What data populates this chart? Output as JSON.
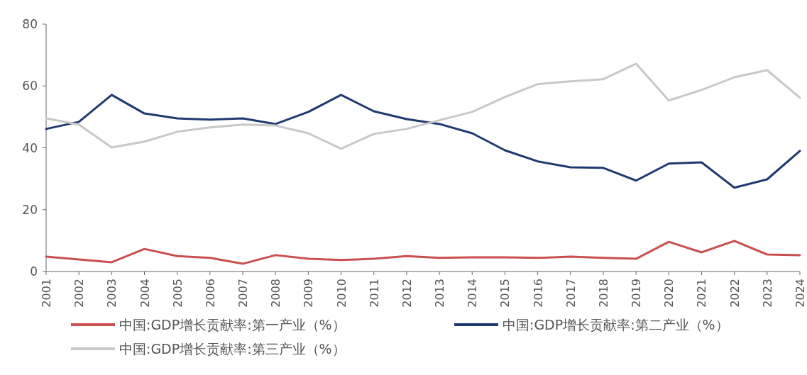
{
  "chart_data": {
    "type": "line",
    "categories": [
      "2001",
      "2002",
      "2003",
      "2004",
      "2005",
      "2006",
      "2007",
      "2008",
      "2009",
      "2010",
      "2011",
      "2012",
      "2013",
      "2014",
      "2015",
      "2016",
      "2017",
      "2018",
      "2019",
      "2020",
      "2021",
      "2022",
      "2023",
      "2024"
    ],
    "ylim": [
      0,
      80
    ],
    "yticks": [
      0,
      20,
      40,
      60,
      80
    ],
    "legend": "bottom",
    "line_style": "solid",
    "marker": "none",
    "series": [
      {
        "name": "中国:GDP增长贡献率:第一产业（%）",
        "color": "#c9504f",
        "values": [
          4.8,
          3.9,
          3.0,
          7.3,
          5.0,
          4.4,
          2.5,
          5.3,
          4.1,
          3.7,
          4.1,
          5.0,
          4.4,
          4.6,
          4.6,
          4.4,
          4.8,
          4.4,
          4.1,
          9.6,
          6.2,
          9.9,
          5.5,
          5.3
        ]
      },
      {
        "name": "中国:GDP增长贡献率:第二产业（%）",
        "color": "#1f3a70",
        "values": [
          46.1,
          48.4,
          57.1,
          51.1,
          49.5,
          49.1,
          49.5,
          47.7,
          51.6,
          57.1,
          51.8,
          49.3,
          47.7,
          44.7,
          39.2,
          35.6,
          33.7,
          33.5,
          29.4,
          34.9,
          35.3,
          27.1,
          29.8,
          39.0
        ]
      },
      {
        "name": "中国:GDP增长贡献率:第三产业（%）",
        "color": "#c8c8c8",
        "values": [
          49.5,
          47.5,
          40.1,
          42.0,
          45.2,
          46.6,
          47.5,
          47.2,
          44.7,
          39.7,
          44.5,
          46.1,
          48.9,
          51.6,
          56.4,
          60.6,
          61.5,
          62.2,
          67.2,
          55.3,
          58.7,
          62.8,
          65.1,
          56.2
        ]
      }
    ]
  }
}
